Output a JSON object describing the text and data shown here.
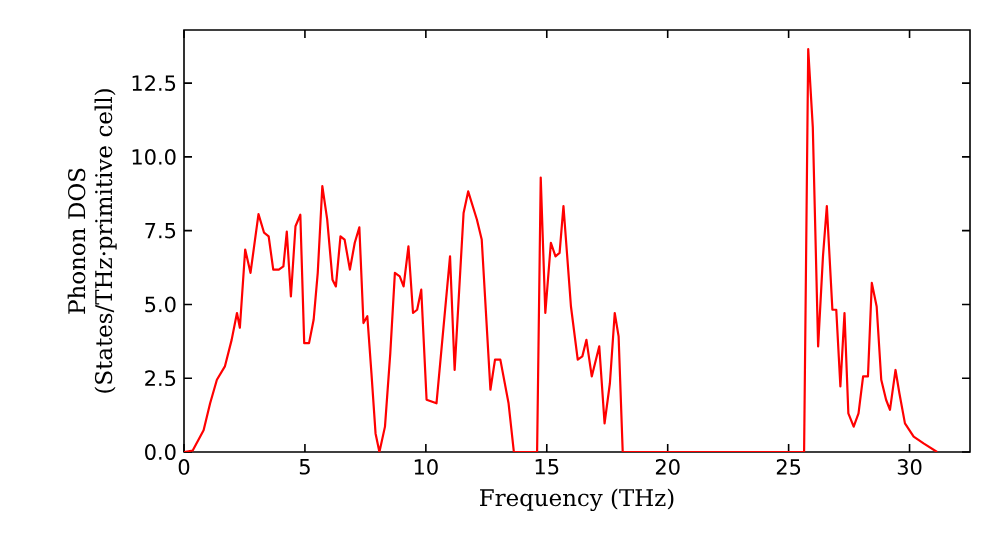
{
  "chart_data": {
    "type": "line",
    "xlabel": "Frequency (THz)",
    "ylabel": "Phonon DOS (States/THz·primitive cell)",
    "xlim": [
      0,
      32.5
    ],
    "ylim": [
      0,
      14.3
    ],
    "xticks": [
      0,
      5,
      10,
      15,
      20,
      25,
      30
    ],
    "yticks": [
      {
        "value": 0,
        "label": "0.0"
      },
      {
        "value": 2.5,
        "label": "2.5"
      },
      {
        "value": 5,
        "label": "5.0"
      },
      {
        "value": 7.5,
        "label": "7.5"
      },
      {
        "value": 10,
        "label": "10.0"
      },
      {
        "value": 12.5,
        "label": "12.5"
      }
    ],
    "marker": "none",
    "line_style": "solid",
    "series": [
      {
        "color": "#ff0000",
        "x": [
          0,
          0.36,
          0.81,
          1.08,
          1.36,
          1.69,
          1.97,
          2.19,
          2.31,
          2.53,
          2.75,
          3.08,
          3.31,
          3.5,
          3.69,
          3.92,
          4.11,
          4.25,
          4.42,
          4.61,
          4.81,
          4.97,
          5.17,
          5.36,
          5.53,
          5.72,
          5.92,
          6.14,
          6.28,
          6.47,
          6.64,
          6.86,
          7.06,
          7.25,
          7.42,
          7.58,
          7.75,
          7.92,
          8.08,
          8.31,
          8.53,
          8.72,
          8.92,
          9.08,
          9.28,
          9.47,
          9.64,
          9.81,
          10.03,
          10.44,
          11.0,
          11.19,
          11.56,
          11.75,
          12.11,
          12.31,
          12.67,
          12.86,
          13.08,
          13.42,
          13.64,
          14.6,
          14.75,
          14.94,
          15.17,
          15.36,
          15.53,
          15.69,
          16.0,
          16.28,
          16.47,
          16.64,
          16.86,
          17.17,
          17.39,
          17.61,
          17.81,
          17.97,
          18.14,
          25.64,
          25.81,
          26.0,
          26.22,
          26.42,
          26.58,
          26.81,
          26.97,
          27.14,
          27.31,
          27.47,
          27.69,
          27.89,
          28.08,
          28.28,
          28.44,
          28.64,
          28.83,
          29.03,
          29.19,
          29.42,
          29.58,
          29.81,
          30.17,
          30.58,
          31.14
        ],
        "values": [
          0,
          0.05,
          0.74,
          1.65,
          2.45,
          2.9,
          3.8,
          4.71,
          4.21,
          6.86,
          6.07,
          8.06,
          7.43,
          7.31,
          6.18,
          6.18,
          6.29,
          7.47,
          5.27,
          7.65,
          8.04,
          3.69,
          3.69,
          4.48,
          6.07,
          9.01,
          7.88,
          5.84,
          5.61,
          7.31,
          7.2,
          6.18,
          7.09,
          7.61,
          4.37,
          4.6,
          2.67,
          0.63,
          0,
          0.86,
          3.35,
          6.07,
          5.95,
          5.61,
          6.97,
          4.71,
          4.82,
          5.5,
          1.77,
          1.65,
          6.63,
          2.78,
          8.1,
          8.83,
          7.88,
          7.2,
          2.11,
          3.13,
          3.13,
          1.65,
          0,
          0,
          9.3,
          4.71,
          7.09,
          6.63,
          6.75,
          8.33,
          4.93,
          3.13,
          3.24,
          3.8,
          2.56,
          3.58,
          0.97,
          2.33,
          4.71,
          3.92,
          0,
          0,
          13.65,
          11.0,
          3.58,
          6.63,
          8.33,
          4.82,
          4.82,
          2.22,
          4.71,
          1.31,
          0.86,
          1.31,
          2.56,
          2.56,
          5.73,
          4.93,
          2.45,
          1.77,
          1.43,
          2.78,
          1.99,
          0.97,
          0.52,
          0.29,
          0
        ]
      }
    ]
  }
}
